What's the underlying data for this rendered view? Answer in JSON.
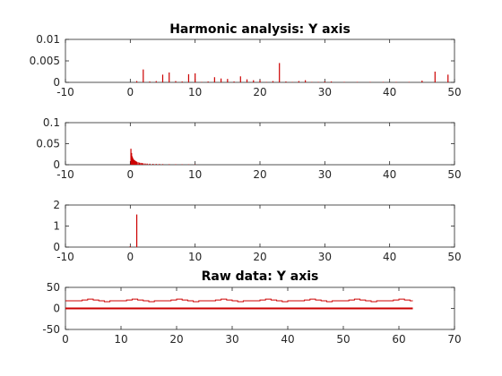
{
  "colors": {
    "data": "#cc0000",
    "axis": "#262626",
    "background": "#ffffff"
  },
  "chart_data": [
    {
      "type": "bar",
      "title": "Harmonic analysis: Y axis",
      "xlim": [
        -10,
        50
      ],
      "ylim": [
        0,
        0.01
      ],
      "xticks": [
        -10,
        0,
        10,
        20,
        30,
        40,
        50
      ],
      "yticks": [
        0,
        0.005,
        0.01
      ],
      "xtick_labels": [
        "-10",
        "0",
        "10",
        "20",
        "30",
        "40",
        "50"
      ],
      "ytick_labels": [
        "0",
        "0.005",
        "0.01"
      ],
      "grid": false,
      "x": [
        1,
        2,
        3,
        4,
        5,
        6,
        7,
        8,
        9,
        10,
        11,
        12,
        13,
        14,
        15,
        16,
        17,
        18,
        19,
        20,
        21,
        22,
        23,
        24,
        25,
        26,
        27,
        28,
        29,
        30,
        31,
        33,
        35,
        37,
        39,
        41,
        43,
        45,
        47,
        49
      ],
      "values": [
        0.0003,
        0.003,
        0.0002,
        0.0003,
        0.0018,
        0.0023,
        0.0003,
        0.0002,
        0.0019,
        0.0021,
        0.0001,
        0.0002,
        0.0012,
        0.0009,
        0.0008,
        0.0002,
        0.0014,
        0.0007,
        0.0005,
        0.0005,
        0.0001,
        0.0003,
        0.0045,
        0.0002,
        0.0001,
        0.0003,
        0.0005,
        0.0001,
        0.0001,
        0.0002,
        0.0002,
        0.0001,
        0.0001,
        0.0001,
        0.0001,
        0.0001,
        0.0001,
        0.0004,
        0.0025,
        0.0018
      ]
    },
    {
      "type": "bar",
      "title": "",
      "xlim": [
        -10,
        50
      ],
      "ylim": [
        0,
        0.1
      ],
      "xticks": [
        -10,
        0,
        10,
        20,
        30,
        40,
        50
      ],
      "yticks": [
        0,
        0.05,
        0.1
      ],
      "xtick_labels": [
        "-10",
        "0",
        "10",
        "20",
        "30",
        "40",
        "50"
      ],
      "ytick_labels": [
        "0",
        "0.05",
        "0.1"
      ],
      "grid": false,
      "x": [
        0.1,
        0.2,
        0.3,
        0.4,
        0.5,
        0.6,
        0.7,
        0.8,
        0.9,
        1.0,
        1.2,
        1.4,
        1.6,
        1.8,
        2.0,
        2.3,
        2.6,
        3.0,
        3.5,
        4.0,
        4.5,
        5.0,
        6.0,
        7.0,
        8.0,
        9.0,
        10.0
      ],
      "values": [
        0.038,
        0.028,
        0.02,
        0.016,
        0.013,
        0.011,
        0.01,
        0.009,
        0.008,
        0.007,
        0.006,
        0.005,
        0.0045,
        0.004,
        0.0035,
        0.003,
        0.0027,
        0.0024,
        0.002,
        0.0018,
        0.0016,
        0.0014,
        0.0012,
        0.001,
        0.0009,
        0.0008,
        0.0007
      ]
    },
    {
      "type": "bar",
      "title": "",
      "xlim": [
        -10,
        50
      ],
      "ylim": [
        0,
        2
      ],
      "xticks": [
        -10,
        0,
        10,
        20,
        30,
        40,
        50
      ],
      "yticks": [
        0,
        1,
        2
      ],
      "xtick_labels": [
        "-10",
        "0",
        "10",
        "20",
        "30",
        "40",
        "50"
      ],
      "ytick_labels": [
        "0",
        "1",
        "2"
      ],
      "grid": false,
      "x": [
        0,
        1
      ],
      "values": [
        0.04,
        1.55
      ]
    },
    {
      "type": "line",
      "title": "Raw data: Y axis",
      "xlim": [
        0,
        70
      ],
      "ylim": [
        -50,
        50
      ],
      "xticks": [
        0,
        10,
        20,
        30,
        40,
        50,
        60,
        70
      ],
      "yticks": [
        -50,
        0,
        50
      ],
      "xtick_labels": [
        "0",
        "10",
        "20",
        "30",
        "40",
        "50",
        "60",
        "70"
      ],
      "ytick_labels": [
        "-50",
        "0",
        "50"
      ],
      "grid": false,
      "series": [
        {
          "style": "step",
          "x": [
            0,
            2,
            3,
            4,
            5,
            6,
            7,
            8,
            10,
            11,
            12,
            13,
            14,
            15,
            16,
            18,
            19,
            20,
            21,
            22,
            23,
            24,
            26,
            27,
            28,
            29,
            30,
            31,
            32,
            34,
            35,
            36,
            37,
            38,
            39,
            40,
            42,
            43,
            44,
            45,
            46,
            47,
            48,
            50,
            51,
            52,
            53,
            54,
            55,
            56,
            58,
            59,
            60,
            61,
            62,
            62.5
          ],
          "values": [
            18,
            18,
            20,
            22,
            20,
            18,
            16,
            18,
            18,
            20,
            22,
            20,
            18,
            16,
            18,
            18,
            20,
            22,
            20,
            18,
            16,
            18,
            18,
            20,
            22,
            20,
            18,
            16,
            18,
            18,
            20,
            22,
            20,
            18,
            16,
            18,
            18,
            20,
            22,
            20,
            18,
            16,
            18,
            18,
            20,
            22,
            20,
            18,
            16,
            18,
            18,
            20,
            22,
            20,
            18,
            18
          ]
        },
        {
          "style": "line",
          "x": [
            0,
            62.5
          ],
          "values": [
            0,
            0
          ]
        }
      ]
    }
  ]
}
